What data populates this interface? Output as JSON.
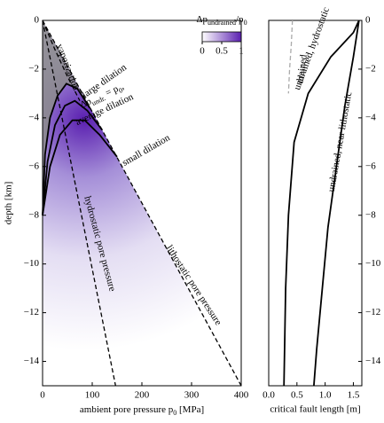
{
  "chart_data": [
    {
      "type": "line",
      "xlabel": [
        "ambient pore pressure ",
        "p",
        "0",
        " [MPa]"
      ],
      "ylabel": "depth [km]",
      "xlim": [
        0,
        400
      ],
      "ylim": [
        -15,
        0
      ],
      "xticks": [
        0,
        100,
        200,
        300,
        400
      ],
      "yticks": [
        0,
        {
          "value": -2,
          "label": "−2"
        },
        {
          "value": -4,
          "label": "−4"
        },
        {
          "value": -6,
          "label": "−6"
        },
        {
          "value": -8,
          "label": "−8"
        },
        {
          "value": -10,
          "label": "−10"
        },
        {
          "value": -12,
          "label": "−12"
        },
        {
          "value": -14,
          "label": "−14"
        }
      ],
      "colorbar": {
        "label": [
          "Δp",
          "undrained",
          "/p",
          "0"
        ],
        "ticks": [
          0,
          0.5,
          1
        ],
        "lim": [
          0,
          1
        ]
      },
      "annotation": [
        "Δp",
        "undr.",
        " = p",
        "0",
        ","
      ],
      "series": [
        {
          "name": "vaporization",
          "color": "#000",
          "style": "dashed",
          "x": [
            0,
            25,
            50,
            75
          ],
          "values": [
            0,
            -1.2,
            -2.3,
            -3.3
          ]
        },
        {
          "name": "large dilation",
          "color": "#000",
          "style": "solid",
          "x": [
            0,
            5,
            15,
            30,
            48,
            70,
            95
          ],
          "values": [
            -8,
            -5.5,
            -4,
            -3.1,
            -2.6,
            -2.8,
            -3.6
          ]
        },
        {
          "name": "average dilation",
          "color": "#000",
          "style": "solid",
          "x": [
            0,
            10,
            25,
            45,
            65,
            90,
            120
          ],
          "values": [
            -8,
            -5.8,
            -4.3,
            -3.5,
            -3.3,
            -3.7,
            -4.5
          ]
        },
        {
          "name": "small dilation",
          "color": "#000",
          "style": "solid",
          "x": [
            0,
            15,
            35,
            60,
            85,
            115,
            150
          ],
          "values": [
            -8,
            -6,
            -4.7,
            -4.1,
            -4.1,
            -4.7,
            -5.6
          ]
        },
        {
          "name": "hydrostatic pore pressure",
          "color": "#000",
          "style": "dashed",
          "x": [
            0,
            147
          ],
          "values": [
            0,
            -15
          ]
        },
        {
          "name": "lithostatic pore pressure",
          "color": "#000",
          "style": "dashed",
          "x": [
            0,
            400
          ],
          "values": [
            0,
            -15
          ]
        }
      ]
    },
    {
      "type": "line",
      "xlabel": "critical fault length [m]",
      "xlim": [
        0,
        1.65
      ],
      "ylim": [
        -15,
        0
      ],
      "xticks": [
        {
          "value": 0,
          "label": "0.0"
        },
        0.5,
        {
          "value": 1,
          "label": "1.0"
        },
        1.5
      ],
      "yticks": [
        0,
        {
          "value": -2,
          "label": "−2"
        },
        {
          "value": -4,
          "label": "−4"
        },
        {
          "value": -6,
          "label": "−6"
        },
        {
          "value": -8,
          "label": "−8"
        },
        {
          "value": -10,
          "label": "−10"
        },
        {
          "value": -12,
          "label": "−12"
        },
        {
          "value": -14,
          "label": "−14"
        }
      ],
      "series": [
        {
          "name": "drained",
          "color": "#aaaaaa",
          "style": "dashed",
          "x": [
            0.42,
            0.4,
            0.37,
            0.35
          ],
          "values": [
            0,
            -1,
            -2,
            -3
          ]
        },
        {
          "name": "undrained, hydrostatic",
          "color": "#000",
          "style": "solid",
          "x": [
            1.6,
            1.5,
            1.1,
            0.7,
            0.45,
            0.35,
            0.3,
            0.27
          ],
          "values": [
            0,
            -0.5,
            -1.5,
            -3,
            -5,
            -8,
            -11,
            -15
          ]
        },
        {
          "name": "undrained, near lithostatic",
          "color": "#000",
          "style": "solid",
          "x": [
            1.6,
            1.5,
            1.35,
            1.2,
            1.05,
            0.95,
            0.85,
            0.8
          ],
          "values": [
            0,
            -1.5,
            -3.5,
            -6,
            -8.5,
            -11,
            -13.5,
            -15
          ]
        }
      ]
    }
  ]
}
